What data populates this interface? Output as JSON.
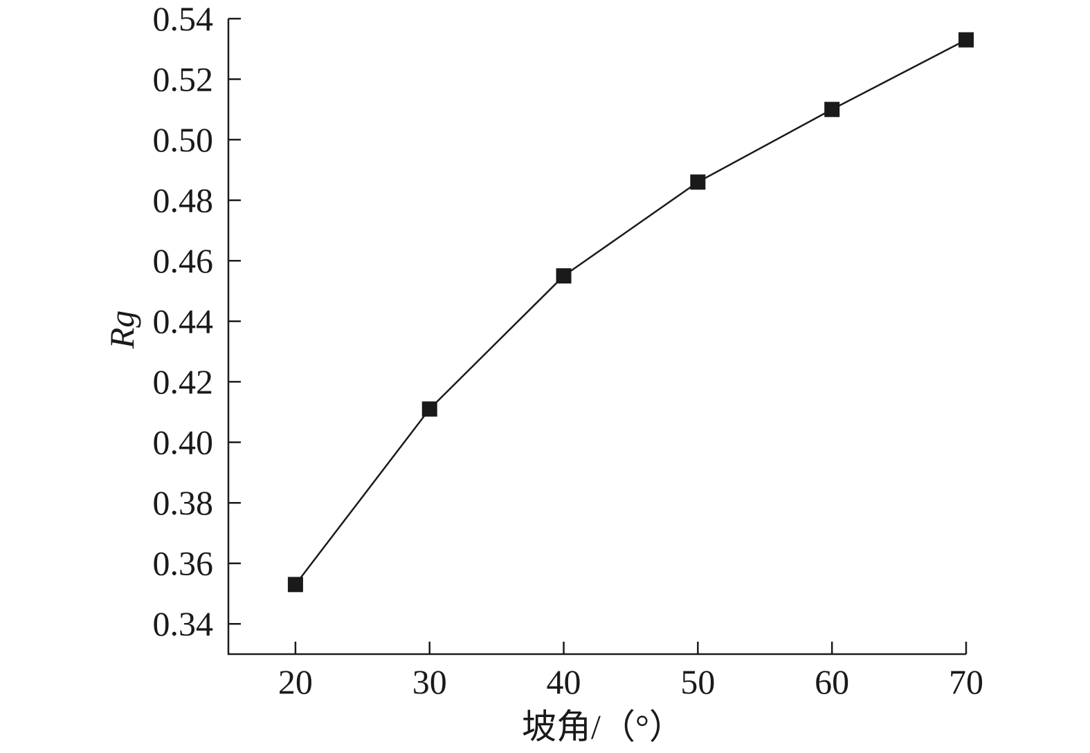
{
  "chart_data": {
    "type": "line",
    "title": "",
    "xlabel": "坡角/（°）",
    "ylabel": "Rg",
    "xlim": [
      15,
      70
    ],
    "ylim": [
      0.33,
      0.54
    ],
    "x_ticks": [
      20,
      30,
      40,
      50,
      60,
      70
    ],
    "x_tick_labels": [
      "20",
      "30",
      "40",
      "50",
      "60",
      "70"
    ],
    "y_ticks": [
      0.34,
      0.36,
      0.38,
      0.4,
      0.42,
      0.44,
      0.46,
      0.48,
      0.5,
      0.52,
      0.54
    ],
    "y_tick_labels": [
      "0.34",
      "0.36",
      "0.38",
      "0.40",
      "0.42",
      "0.44",
      "0.46",
      "0.48",
      "0.50",
      "0.52",
      "0.54"
    ],
    "grid": false,
    "series": [
      {
        "marker": "square",
        "color": "#1a1a1a",
        "x": [
          20,
          30,
          40,
          50,
          60,
          70
        ],
        "y": [
          0.353,
          0.411,
          0.455,
          0.486,
          0.51,
          0.533
        ]
      }
    ]
  }
}
